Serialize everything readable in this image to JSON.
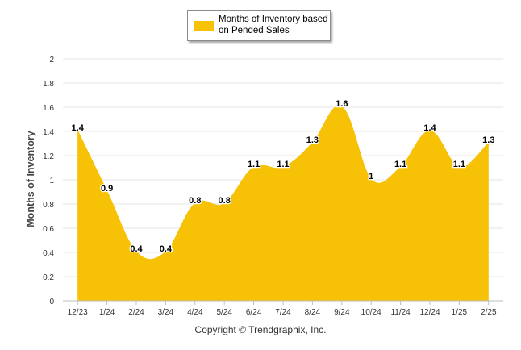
{
  "legend": {
    "label": "Months of Inventory based on Pended Sales"
  },
  "colors": {
    "series": "#f7c206",
    "grid": "#e6e6e6",
    "axis": "#bdbdbd",
    "text": "#333333"
  },
  "footer": {
    "copyright": "Copyright © Trendgraphix, Inc."
  },
  "chart_data": {
    "type": "area",
    "categories": [
      "12/23",
      "1/24",
      "2/24",
      "3/24",
      "4/24",
      "5/24",
      "6/24",
      "7/24",
      "8/24",
      "9/24",
      "10/24",
      "11/24",
      "12/24",
      "1/25",
      "2/25"
    ],
    "series": [
      {
        "name": "Months of Inventory based on Pended Sales",
        "values": [
          1.4,
          0.9,
          0.4,
          0.4,
          0.8,
          0.8,
          1.1,
          1.1,
          1.3,
          1.6,
          1,
          1.1,
          1.4,
          1.1,
          1.3
        ],
        "data_labels": [
          "1.4",
          "0.9",
          "0.4",
          "0.4",
          "0.8",
          "0.8",
          "1.1",
          "1.1",
          "1.3",
          "1.6",
          "1",
          "1.1",
          "1.4",
          "1.1",
          "1.3"
        ]
      }
    ],
    "ylabel": "Months of Inventory",
    "xlabel": "",
    "ylim": [
      0,
      2
    ],
    "yticks": [
      "0",
      "0.2",
      "0.4",
      "0.6",
      "0.8",
      "1",
      "1.2",
      "1.4",
      "1.6",
      "1.8",
      "2"
    ],
    "grid": true,
    "legend_position": "top-center",
    "smooth": true
  }
}
